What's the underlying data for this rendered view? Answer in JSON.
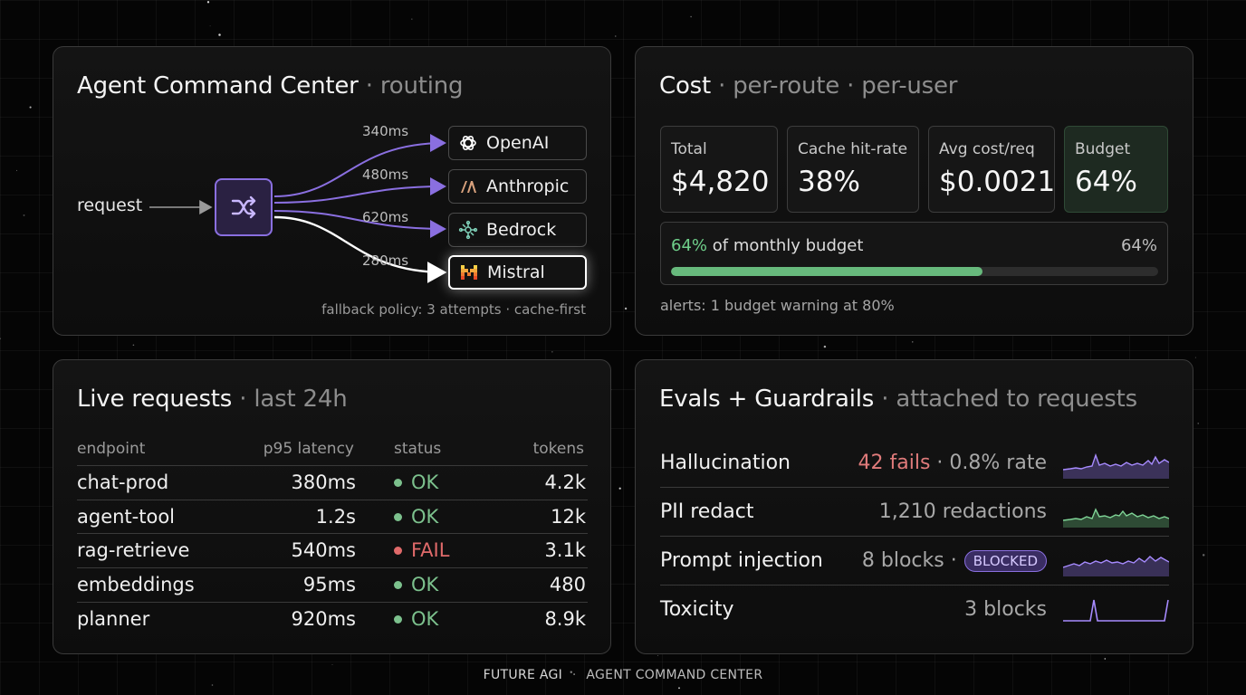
{
  "routing": {
    "title": "Agent Command Center",
    "subtitle": "routing",
    "request_label": "request",
    "providers": [
      {
        "name": "OpenAI",
        "latency": "340ms",
        "icon": "openai-icon"
      },
      {
        "name": "Anthropic",
        "latency": "480ms",
        "icon": "anthropic-icon"
      },
      {
        "name": "Bedrock",
        "latency": "620ms",
        "icon": "bedrock-icon"
      },
      {
        "name": "Mistral",
        "latency": "280ms",
        "icon": "mistral-icon",
        "active": true
      }
    ],
    "footnote": "fallback policy: 3 attempts · cache-first",
    "colors": {
      "accent": "#8a6fe0",
      "active": "#ffffff"
    }
  },
  "cost": {
    "title": "Cost",
    "subtitle_1": "per-route",
    "subtitle_2": "per-user",
    "stats": [
      {
        "label": "Total",
        "value": "$4,820"
      },
      {
        "label": "Cache hit-rate",
        "value": "38%"
      },
      {
        "label": "Avg cost/req",
        "value": "$0.0021"
      },
      {
        "label": "Budget",
        "value": "64%"
      }
    ],
    "budget_bar": {
      "highlight": "64%",
      "text": "of monthly budget",
      "right_value": "64%",
      "fraction": 0.64,
      "color": "#67b97c"
    },
    "alerts": "alerts: 1 budget warning at 80%"
  },
  "live": {
    "title": "Live requests",
    "subtitle": "last 24h",
    "columns": [
      "endpoint",
      "p95 latency",
      "status",
      "tokens"
    ],
    "rows": [
      {
        "endpoint": "chat-prod",
        "latency": "380ms",
        "status": "OK",
        "tokens": "4.2k"
      },
      {
        "endpoint": "agent-tool",
        "latency": "1.2s",
        "status": "OK",
        "tokens": "12k"
      },
      {
        "endpoint": "rag-retrieve",
        "latency": "540ms",
        "status": "FAIL",
        "tokens": "3.1k"
      },
      {
        "endpoint": "embeddings",
        "latency": "95ms",
        "status": "OK",
        "tokens": "480"
      },
      {
        "endpoint": "planner",
        "latency": "920ms",
        "status": "OK",
        "tokens": "8.9k"
      }
    ],
    "colors": {
      "ok": "#7cc18d",
      "fail": "#e06a6a"
    }
  },
  "evals": {
    "title": "Evals + Guardrails",
    "subtitle": "attached to requests",
    "rows": [
      {
        "name": "Hallucination",
        "metric_highlight": "42 fails",
        "metric": "0.8% rate",
        "spark_color": "#8a6fe0"
      },
      {
        "name": "PII redact",
        "metric": "1,210 redactions",
        "spark_color": "#67b97c"
      },
      {
        "name": "Prompt injection",
        "metric": "8 blocks",
        "badge": "BLOCKED",
        "spark_color": "#8a6fe0"
      },
      {
        "name": "Toxicity",
        "metric": "3 blocks",
        "spark_color": "#8a6fe0"
      }
    ]
  },
  "footer": {
    "brand": "FUTURE AGI",
    "separator": "·",
    "product": "AGENT COMMAND CENTER"
  }
}
